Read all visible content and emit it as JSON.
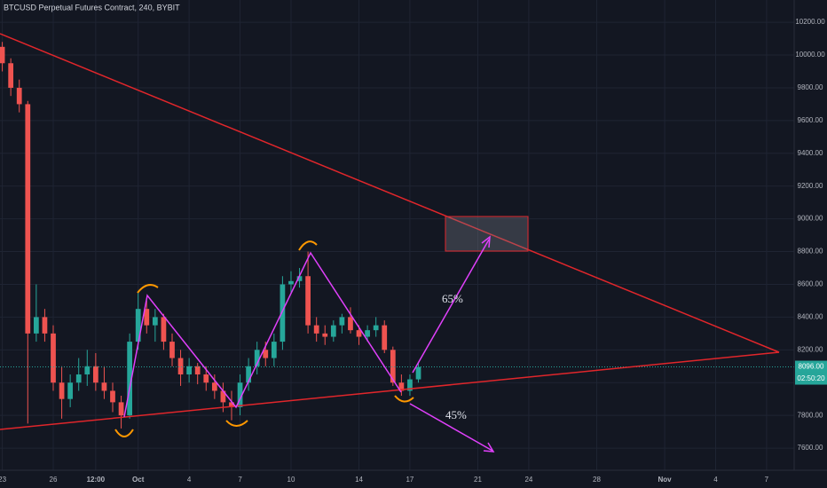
{
  "chart_data": {
    "type": "candlestick",
    "title": "BTCUSD Perpetual Futures Contract, 240, BYBIT",
    "x": [
      -3,
      -2.5,
      -2,
      -1.5,
      -1,
      -0.5,
      0,
      0.5,
      1,
      1.5,
      2,
      2.5,
      3,
      3.5,
      4,
      4.5,
      5,
      5.5,
      6,
      6.5,
      7,
      7.5,
      8,
      8.5,
      9,
      9.5,
      10,
      10.5,
      11,
      11.5,
      12,
      12.5,
      13,
      13.5,
      14,
      14.5,
      15,
      15.5,
      16,
      16.5,
      17,
      17.5,
      18,
      18.5,
      19,
      19.5,
      20,
      20.5,
      21,
      21.5
    ],
    "open": [
      10050,
      9950,
      9800,
      9700,
      8300,
      8400,
      8300,
      8000,
      7900,
      8000,
      8050,
      8100,
      8000,
      7950,
      7880,
      7800,
      8250,
      8450,
      8350,
      8400,
      8250,
      8150,
      8050,
      8100,
      8050,
      8000,
      7950,
      7880,
      7850,
      8000,
      8100,
      8200,
      8150,
      8250,
      8600,
      8620,
      8650,
      8350,
      8300,
      8280,
      8350,
      8400,
      8320,
      8280,
      8320,
      8350,
      8200,
      8000,
      7950,
      8020
    ],
    "high": [
      10080,
      9980,
      9850,
      9720,
      8600,
      8450,
      8350,
      8100,
      8050,
      8150,
      8200,
      8180,
      8100,
      8000,
      7920,
      8300,
      8550,
      8500,
      8450,
      8420,
      8300,
      8200,
      8150,
      8120,
      8100,
      8050,
      8000,
      7950,
      8050,
      8150,
      8250,
      8250,
      8300,
      8650,
      8680,
      8700,
      8800,
      8400,
      8350,
      8380,
      8420,
      8460,
      8350,
      8350,
      8400,
      8380,
      8220,
      8050,
      8050,
      8120
    ],
    "low": [
      9900,
      9750,
      9650,
      7750,
      8250,
      8250,
      7950,
      7780,
      7850,
      7950,
      7980,
      7950,
      7900,
      7820,
      7720,
      7780,
      8200,
      8300,
      8250,
      8200,
      8100,
      7980,
      8000,
      7990,
      7950,
      7900,
      7820,
      7770,
      7800,
      7950,
      8050,
      8100,
      8100,
      8200,
      8550,
      8580,
      8300,
      8250,
      8230,
      8250,
      8300,
      8300,
      8230,
      8250,
      8280,
      8180,
      7980,
      7920,
      7920,
      8000
    ],
    "close": [
      9950,
      9800,
      9700,
      8300,
      8400,
      8300,
      8000,
      7900,
      8000,
      8050,
      8100,
      8000,
      7950,
      7880,
      7800,
      8250,
      8450,
      8350,
      8400,
      8250,
      8150,
      8050,
      8100,
      8050,
      8000,
      7950,
      7880,
      7850,
      8000,
      8100,
      8200,
      8150,
      8250,
      8600,
      8620,
      8650,
      8350,
      8300,
      8280,
      8350,
      8400,
      8320,
      8280,
      8320,
      8350,
      8200,
      8000,
      7950,
      8020,
      8096
    ],
    "up_color": "#26a69a",
    "down_color": "#ef5350",
    "xlim": [
      -3.135,
      43.625
    ],
    "ylim": [
      7465,
      10336
    ],
    "xticks": [
      {
        "value": -3,
        "label": "23"
      },
      {
        "value": 0,
        "label": "26"
      },
      {
        "value": 2.5,
        "label": "12:00"
      },
      {
        "value": 5,
        "label": "Oct"
      },
      {
        "value": 8,
        "label": "4"
      },
      {
        "value": 11,
        "label": "7"
      },
      {
        "value": 14,
        "label": "10"
      },
      {
        "value": 18,
        "label": "14"
      },
      {
        "value": 21,
        "label": "17"
      },
      {
        "value": 25,
        "label": "21"
      },
      {
        "value": 28,
        "label": "24"
      },
      {
        "value": 32,
        "label": "28"
      },
      {
        "value": 36,
        "label": "Nov"
      },
      {
        "value": 39,
        "label": "4"
      },
      {
        "value": 42,
        "label": "7"
      }
    ],
    "yticks": [
      {
        "value": 10200,
        "label": "10200.00"
      },
      {
        "value": 10000,
        "label": "10000.00"
      },
      {
        "value": 9800,
        "label": "9800.00"
      },
      {
        "value": 9600,
        "label": "9600.00"
      },
      {
        "value": 9400,
        "label": "9400.00"
      },
      {
        "value": 9200,
        "label": "9200.00"
      },
      {
        "value": 9000,
        "label": "9000.00"
      },
      {
        "value": 8800,
        "label": "8800.00"
      },
      {
        "value": 8600,
        "label": "8600.00"
      },
      {
        "value": 8400,
        "label": "8400.00"
      },
      {
        "value": 8200,
        "label": "8200.00"
      },
      {
        "value": 8000,
        "label": "8000.00"
      },
      {
        "value": 7800,
        "label": "7800.00"
      },
      {
        "value": 7600,
        "label": "7600.00"
      }
    ],
    "grid": true,
    "last_price": {
      "value": 8096,
      "label": "8096.00"
    },
    "countdown": "02:50:20",
    "annotations": [
      "65%",
      "45%"
    ]
  }
}
